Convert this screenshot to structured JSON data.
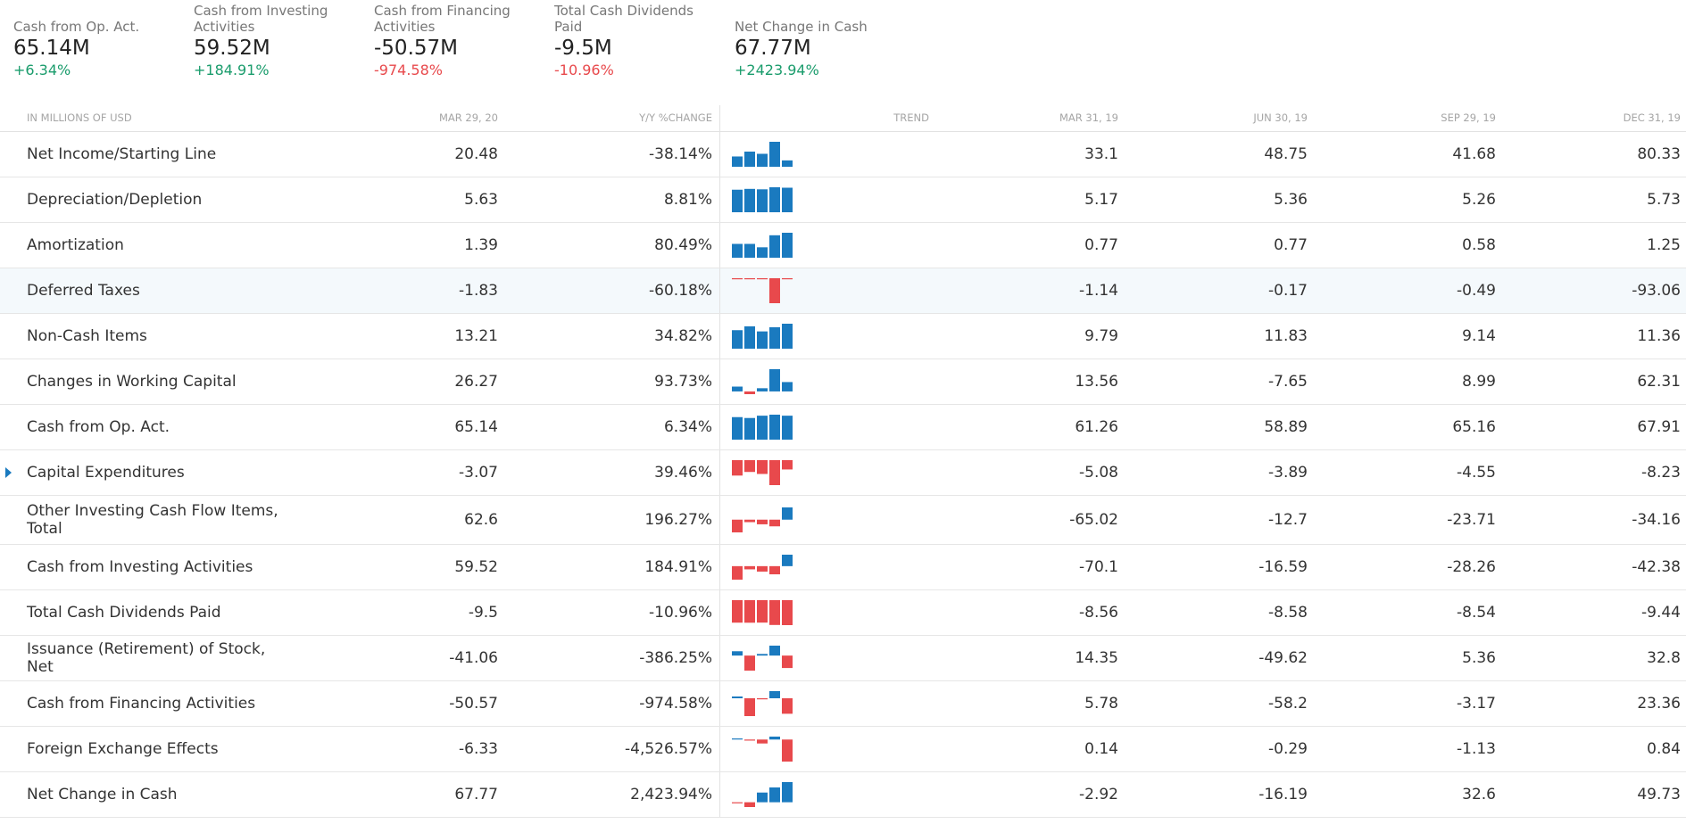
{
  "summary": [
    {
      "label": "Cash from Op. Act.",
      "value": "65.14M",
      "change": "+6.34%",
      "direction": "pos"
    },
    {
      "label": "Cash from Investing Activities",
      "value": "59.52M",
      "change": "+184.91%",
      "direction": "pos"
    },
    {
      "label": "Cash from Financing Activities",
      "value": "-50.57M",
      "change": "-974.58%",
      "direction": "neg"
    },
    {
      "label": "Total Cash Dividends Paid",
      "value": "-9.5M",
      "change": "-10.96%",
      "direction": "neg"
    },
    {
      "label": "Net Change in Cash",
      "value": "67.77M",
      "change": "+2423.94%",
      "direction": "pos"
    }
  ],
  "table": {
    "headers": {
      "label": "IN MILLIONS OF USD",
      "current": "MAR 29, 20",
      "yoy": "Y/Y %CHANGE",
      "trend": "TREND",
      "q1": "MAR 31, 19",
      "q2": "JUN 30, 19",
      "q3": "SEP 29, 19",
      "q4": "DEC 31, 19"
    },
    "rows": [
      {
        "label": "Net Income/Starting Line",
        "current": "20.48",
        "yoy": "-38.14%",
        "yoy_dir": "neg",
        "q1": "33.1",
        "q2": "48.75",
        "q3": "41.68",
        "q4": "80.33",
        "trend": [
          33.1,
          48.75,
          41.68,
          80.33,
          20.48
        ]
      },
      {
        "label": "Depreciation/Depletion",
        "current": "5.63",
        "yoy": "8.81%",
        "yoy_dir": "pos",
        "q1": "5.17",
        "q2": "5.36",
        "q3": "5.26",
        "q4": "5.73",
        "trend": [
          5.17,
          5.36,
          5.26,
          5.73,
          5.63
        ]
      },
      {
        "label": "Amortization",
        "current": "1.39",
        "yoy": "80.49%",
        "yoy_dir": "pos",
        "q1": "0.77",
        "q2": "0.77",
        "q3": "0.58",
        "q4": "1.25",
        "trend": [
          0.77,
          0.77,
          0.58,
          1.25,
          1.39
        ]
      },
      {
        "label": "Deferred Taxes",
        "current": "-1.83",
        "yoy": "-60.18%",
        "yoy_dir": "neg",
        "q1": "-1.14",
        "q2": "-0.17",
        "q3": "-0.49",
        "q4": "-93.06",
        "trend": [
          -1.14,
          -0.17,
          -0.49,
          -93.06,
          -1.83
        ],
        "highlighted": true
      },
      {
        "label": "Non-Cash Items",
        "current": "13.21",
        "yoy": "34.82%",
        "yoy_dir": "pos",
        "q1": "9.79",
        "q2": "11.83",
        "q3": "9.14",
        "q4": "11.36",
        "trend": [
          9.79,
          11.83,
          9.14,
          11.36,
          13.21
        ]
      },
      {
        "label": "Changes in Working Capital",
        "current": "26.27",
        "yoy": "93.73%",
        "yoy_dir": "pos",
        "q1": "13.56",
        "q2": "-7.65",
        "q3": "8.99",
        "q4": "62.31",
        "trend": [
          13.56,
          -7.65,
          8.99,
          62.31,
          26.27
        ]
      },
      {
        "label": "Cash from Op. Act.",
        "current": "65.14",
        "yoy": "6.34%",
        "yoy_dir": "pos",
        "q1": "61.26",
        "q2": "58.89",
        "q3": "65.16",
        "q4": "67.91",
        "trend": [
          61.26,
          58.89,
          65.16,
          67.91,
          65.14
        ]
      },
      {
        "label": "Capital Expenditures",
        "current": "-3.07",
        "yoy": "39.46%",
        "yoy_dir": "pos",
        "q1": "-5.08",
        "q2": "-3.89",
        "q3": "-4.55",
        "q4": "-8.23",
        "trend": [
          -5.08,
          -3.89,
          -4.55,
          -8.23,
          -3.07
        ],
        "expandable": true
      },
      {
        "label": "Other Investing Cash Flow Items, Total",
        "current": "62.6",
        "yoy": "196.27%",
        "yoy_dir": "pos",
        "q1": "-65.02",
        "q2": "-12.7",
        "q3": "-23.71",
        "q4": "-34.16",
        "trend": [
          -65.02,
          -12.7,
          -23.71,
          -34.16,
          62.6
        ],
        "tall": true
      },
      {
        "label": "Cash from Investing Activities",
        "current": "59.52",
        "yoy": "184.91%",
        "yoy_dir": "pos",
        "q1": "-70.1",
        "q2": "-16.59",
        "q3": "-28.26",
        "q4": "-42.38",
        "trend": [
          -70.1,
          -16.59,
          -28.26,
          -42.38,
          59.52
        ]
      },
      {
        "label": "Total Cash Dividends Paid",
        "current": "-9.5",
        "yoy": "-10.96%",
        "yoy_dir": "neg",
        "q1": "-8.56",
        "q2": "-8.58",
        "q3": "-8.54",
        "q4": "-9.44",
        "trend": [
          -8.56,
          -8.58,
          -8.54,
          -9.44,
          -9.5
        ]
      },
      {
        "label": "Issuance (Retirement) of Stock, Net",
        "current": "-41.06",
        "yoy": "-386.25%",
        "yoy_dir": "neg",
        "q1": "14.35",
        "q2": "-49.62",
        "q3": "5.36",
        "q4": "32.8",
        "trend": [
          14.35,
          -49.62,
          5.36,
          32.8,
          -41.06
        ]
      },
      {
        "label": "Cash from Financing Activities",
        "current": "-50.57",
        "yoy": "-974.58%",
        "yoy_dir": "neg",
        "q1": "5.78",
        "q2": "-58.2",
        "q3": "-3.17",
        "q4": "23.36",
        "trend": [
          5.78,
          -58.2,
          -3.17,
          23.36,
          -50.57
        ]
      },
      {
        "label": "Foreign Exchange Effects",
        "current": "-6.33",
        "yoy": "-4,526.57%",
        "yoy_dir": "neg",
        "q1": "0.14",
        "q2": "-0.29",
        "q3": "-1.13",
        "q4": "0.84",
        "trend": [
          0.14,
          -0.29,
          -1.13,
          0.84,
          -6.33
        ]
      },
      {
        "label": "Net Change in Cash",
        "current": "67.77",
        "yoy": "2,423.94%",
        "yoy_dir": "pos",
        "q1": "-2.92",
        "q2": "-16.19",
        "q3": "32.6",
        "q4": "49.73",
        "trend": [
          -2.92,
          -16.19,
          32.6,
          49.73,
          67.77
        ]
      }
    ]
  },
  "colors": {
    "positive_text": "#1a9c6c",
    "negative_text": "#e8494c",
    "positive_bar": "#1a7abf",
    "negative_bar": "#e8494c",
    "header_text": "#a5a5a5",
    "row_highlight": "#f4f9fc"
  }
}
